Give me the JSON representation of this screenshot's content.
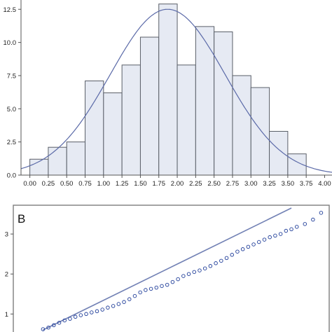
{
  "colors": {
    "bar_fill": "#e6eaf3",
    "bar_stroke": "#5a5f68",
    "curve": "#5b6aa8",
    "axis": "#555555",
    "frame": "#7d7d7d",
    "qq_marker": "#1f3d99",
    "qq_line": "#7382b5"
  },
  "chart_data": [
    {
      "type": "bar",
      "panel_label": "",
      "title": "",
      "xlabel": "",
      "ylabel": "",
      "bin_width": 0.25,
      "bin_starts": [
        0.0,
        0.25,
        0.5,
        0.75,
        1.0,
        1.25,
        1.5,
        1.75,
        2.0,
        2.25,
        2.5,
        2.75,
        3.0,
        3.25,
        3.5
      ],
      "values": [
        1.2,
        2.1,
        2.5,
        7.1,
        6.2,
        8.3,
        10.4,
        12.9,
        8.3,
        11.2,
        10.8,
        7.5,
        6.6,
        3.3,
        1.6
      ],
      "xlim": [
        -0.12,
        4.1
      ],
      "ylim": [
        0,
        13.2
      ],
      "x_ticks": [
        "0.00",
        "0.25",
        "0.50",
        "0.75",
        "1.00",
        "1.25",
        "1.50",
        "1.75",
        "2.00",
        "2.25",
        "2.50",
        "2.75",
        "3.00",
        "3.25",
        "3.50",
        "3.75",
        "4.00"
      ],
      "y_ticks": [
        "0.0",
        "2.5",
        "5.0",
        "7.5",
        "10.0",
        "12.5"
      ],
      "overlay": {
        "type": "normal_curve",
        "mean": 1.87,
        "peak": 12.5,
        "sd": 0.78
      },
      "grid": false
    },
    {
      "type": "scatter",
      "panel_label": "B",
      "title": "",
      "xlabel": "",
      "ylabel": "",
      "y_ticks": [
        "1",
        "2",
        "3"
      ],
      "ylim": [
        0.55,
        3.72
      ],
      "xlim": [
        -2.85,
        3.0
      ],
      "points": [
        [
          -2.3,
          0.62
        ],
        [
          -2.2,
          0.66
        ],
        [
          -2.1,
          0.72
        ],
        [
          -2.0,
          0.78
        ],
        [
          -1.9,
          0.84
        ],
        [
          -1.8,
          0.88
        ],
        [
          -1.7,
          0.93
        ],
        [
          -1.6,
          0.97
        ],
        [
          -1.5,
          1.0
        ],
        [
          -1.4,
          1.04
        ],
        [
          -1.3,
          1.07
        ],
        [
          -1.2,
          1.11
        ],
        [
          -1.1,
          1.16
        ],
        [
          -1.0,
          1.2
        ],
        [
          -0.9,
          1.25
        ],
        [
          -0.8,
          1.3
        ],
        [
          -0.7,
          1.37
        ],
        [
          -0.6,
          1.45
        ],
        [
          -0.5,
          1.54
        ],
        [
          -0.4,
          1.6
        ],
        [
          -0.3,
          1.63
        ],
        [
          -0.2,
          1.66
        ],
        [
          -0.1,
          1.7
        ],
        [
          0.0,
          1.73
        ],
        [
          0.1,
          1.8
        ],
        [
          0.2,
          1.87
        ],
        [
          0.3,
          1.95
        ],
        [
          0.4,
          2.0
        ],
        [
          0.5,
          2.05
        ],
        [
          0.6,
          2.09
        ],
        [
          0.7,
          2.14
        ],
        [
          0.8,
          2.2
        ],
        [
          0.9,
          2.27
        ],
        [
          1.0,
          2.33
        ],
        [
          1.1,
          2.4
        ],
        [
          1.2,
          2.48
        ],
        [
          1.3,
          2.56
        ],
        [
          1.4,
          2.62
        ],
        [
          1.5,
          2.68
        ],
        [
          1.6,
          2.74
        ],
        [
          1.7,
          2.8
        ],
        [
          1.8,
          2.86
        ],
        [
          1.9,
          2.92
        ],
        [
          2.0,
          2.96
        ],
        [
          2.1,
          3.0
        ],
        [
          2.2,
          3.08
        ],
        [
          2.3,
          3.12
        ],
        [
          2.4,
          3.18
        ],
        [
          2.55,
          3.25
        ],
        [
          2.7,
          3.36
        ],
        [
          2.85,
          3.53
        ]
      ],
      "reference_line": [
        [
          -2.3,
          0.6
        ],
        [
          2.3,
          3.65
        ]
      ],
      "grid": false
    }
  ]
}
